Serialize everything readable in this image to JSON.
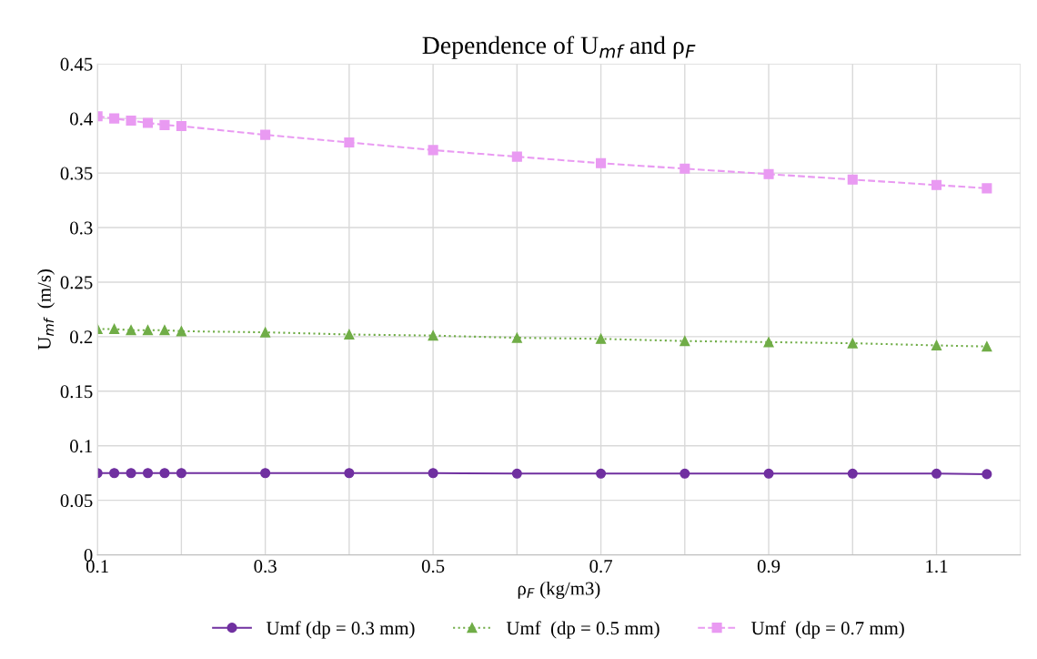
{
  "chart_data": {
    "type": "line",
    "title": "Dependence of U$_{mf}$ and ρ$_{F}$",
    "xlabel": "ρ$_{F}$ (kg/m3)",
    "ylabel": "U$_{mf}$  (m/s)",
    "x": [
      0.1,
      0.12,
      0.14,
      0.16,
      0.18,
      0.2,
      0.3,
      0.4,
      0.5,
      0.6,
      0.7,
      0.8,
      0.9,
      1.0,
      1.1,
      1.16
    ],
    "series": [
      {
        "name": "Umf (dp = 0.3 mm)",
        "color": "#7030a0",
        "marker": "circle",
        "line_style": "solid",
        "values": [
          0.075,
          0.075,
          0.075,
          0.075,
          0.075,
          0.075,
          0.075,
          0.075,
          0.075,
          0.0745,
          0.0745,
          0.0745,
          0.0745,
          0.0745,
          0.0745,
          0.074
        ]
      },
      {
        "name": "Umf  (dp = 0.5 mm)",
        "color": "#70ad47",
        "marker": "triangle",
        "line_style": "dotted",
        "values": [
          0.207,
          0.207,
          0.206,
          0.206,
          0.206,
          0.205,
          0.204,
          0.202,
          0.201,
          0.199,
          0.198,
          0.196,
          0.195,
          0.194,
          0.192,
          0.191
        ]
      },
      {
        "name": "Umf  (dp = 0.7 mm)",
        "color": "#e99af2",
        "marker": "square",
        "line_style": "dashed",
        "values": [
          0.402,
          0.4,
          0.398,
          0.396,
          0.394,
          0.393,
          0.385,
          0.378,
          0.371,
          0.365,
          0.359,
          0.354,
          0.349,
          0.344,
          0.339,
          0.336
        ]
      }
    ],
    "xlim": [
      0.1,
      1.2
    ],
    "xticks": [
      0.1,
      {
        "value": 0.2,
        "label": null
      },
      0.3,
      {
        "value": 0.4,
        "label": null
      },
      0.5,
      {
        "value": 0.6,
        "label": null
      },
      0.7,
      {
        "value": 0.8,
        "label": null
      },
      0.9,
      {
        "value": 1.0,
        "label": null
      },
      1.1,
      {
        "value": 1.2,
        "label": null
      }
    ],
    "ylim": [
      0,
      0.45
    ],
    "yticks": [
      0,
      0.05,
      0.1,
      0.15,
      0.2,
      0.25,
      0.3,
      0.35,
      0.4,
      0.45
    ],
    "grid": true,
    "legend": "bottom"
  }
}
